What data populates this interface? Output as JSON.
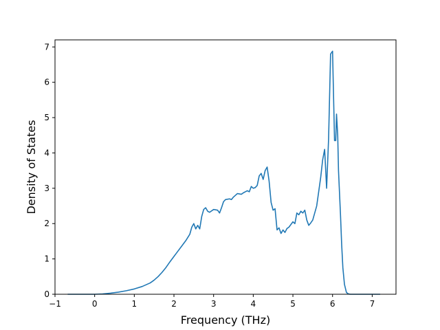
{
  "chart_data": {
    "type": "line",
    "title": "",
    "xlabel": "Frequency (THz)",
    "ylabel": "Density of States",
    "xlim": [
      -1.0,
      7.6
    ],
    "ylim": [
      0,
      7.2
    ],
    "xticks": [
      -1,
      0,
      1,
      2,
      3,
      4,
      5,
      6,
      7
    ],
    "yticks": [
      0,
      1,
      2,
      3,
      4,
      5,
      6,
      7
    ],
    "grid": false,
    "colors": {
      "line": "#1f77b4"
    },
    "series": [
      {
        "x": [
          -0.68,
          -0.5,
          0.0,
          0.2,
          0.4,
          0.6,
          0.8,
          1.0,
          1.2,
          1.4,
          1.5,
          1.6,
          1.7,
          1.8,
          1.9,
          2.0,
          2.1,
          2.2,
          2.3,
          2.4,
          2.45,
          2.5,
          2.55,
          2.6,
          2.65,
          2.7,
          2.75,
          2.8,
          2.85,
          2.9,
          3.0,
          3.1,
          3.15,
          3.2,
          3.25,
          3.3,
          3.4,
          3.45,
          3.5,
          3.6,
          3.7,
          3.75,
          3.8,
          3.85,
          3.9,
          3.95,
          4.0,
          4.05,
          4.1,
          4.15,
          4.2,
          4.25,
          4.3,
          4.35,
          4.4,
          4.45,
          4.5,
          4.55,
          4.6,
          4.65,
          4.7,
          4.75,
          4.8,
          4.85,
          4.9,
          5.0,
          5.05,
          5.1,
          5.15,
          5.2,
          5.25,
          5.3,
          5.35,
          5.4,
          5.45,
          5.5,
          5.55,
          5.6,
          5.65,
          5.7,
          5.75,
          5.8,
          5.85,
          5.9,
          5.95,
          6.0,
          6.05,
          6.08,
          6.1,
          6.13,
          6.15,
          6.2,
          6.23,
          6.26,
          6.3,
          6.35,
          6.4,
          6.45,
          6.5,
          6.55,
          6.6,
          6.8,
          7.2
        ],
        "y": [
          0.0,
          0.0,
          0.0,
          0.01,
          0.03,
          0.06,
          0.1,
          0.15,
          0.22,
          0.32,
          0.4,
          0.5,
          0.62,
          0.76,
          0.92,
          1.07,
          1.22,
          1.37,
          1.52,
          1.7,
          1.9,
          2.0,
          1.85,
          1.95,
          1.85,
          2.2,
          2.4,
          2.45,
          2.35,
          2.32,
          2.4,
          2.38,
          2.3,
          2.45,
          2.62,
          2.68,
          2.7,
          2.68,
          2.75,
          2.85,
          2.83,
          2.87,
          2.9,
          2.93,
          2.9,
          3.05,
          3.0,
          3.02,
          3.08,
          3.35,
          3.42,
          3.25,
          3.5,
          3.6,
          3.2,
          2.6,
          2.38,
          2.42,
          1.82,
          1.88,
          1.72,
          1.82,
          1.75,
          1.86,
          1.9,
          2.05,
          2.0,
          2.3,
          2.25,
          2.35,
          2.3,
          2.38,
          2.1,
          1.95,
          2.02,
          2.1,
          2.3,
          2.5,
          2.9,
          3.3,
          3.8,
          4.1,
          3.0,
          4.4,
          6.8,
          6.88,
          4.35,
          4.35,
          5.1,
          4.5,
          3.5,
          2.25,
          1.4,
          0.75,
          0.28,
          0.05,
          0.01,
          0.0,
          0.0,
          0.0,
          0.0,
          0.0,
          0.0
        ]
      }
    ]
  }
}
